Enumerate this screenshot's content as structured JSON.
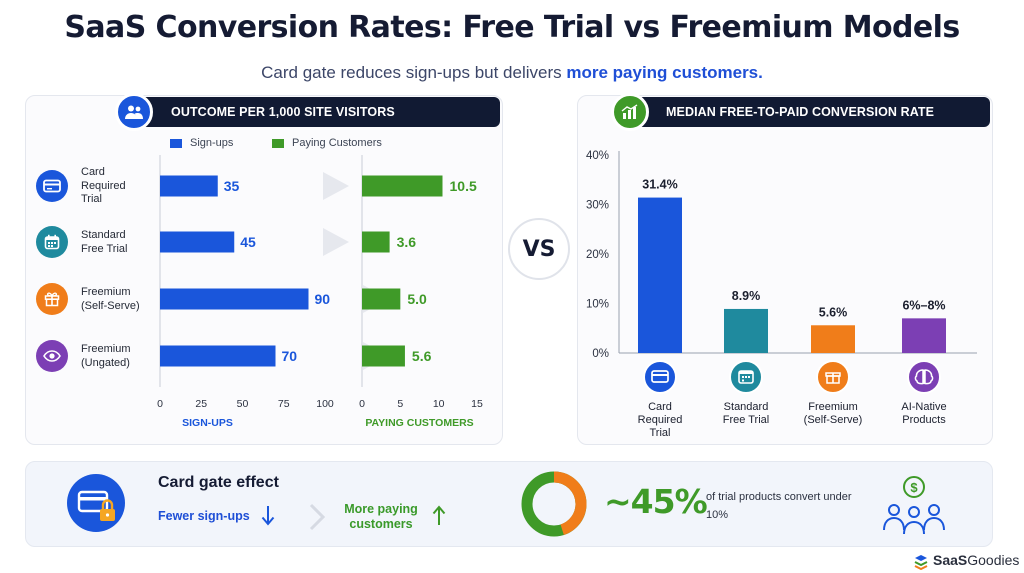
{
  "title": "SaaS Conversion Rates: Free Trial vs Freemium Models",
  "subtitle": {
    "plain": "Card gate reduces sign-ups but delivers ",
    "highlight": "more paying customers."
  },
  "colors": {
    "blue": "#1a56db",
    "green": "#3f9a28",
    "teal": "#1f8a9e",
    "orange": "#f07d1a",
    "purple": "#7c3fb4",
    "navy": "#111a33"
  },
  "left_panel": {
    "header": "OUTCOME PER 1,000 SITE VISITORS",
    "header_icon": "users-icon",
    "legend": [
      {
        "label": "Sign-ups",
        "color": "#1a56db"
      },
      {
        "label": "Paying Customers",
        "color": "#3f9a28"
      }
    ],
    "rows": [
      {
        "label_lines": [
          "Card",
          "Required",
          "Trial"
        ],
        "icon": "card-icon",
        "icon_color": "#1a56db"
      },
      {
        "label_lines": [
          "Standard",
          "Free Trial"
        ],
        "icon": "calendar-icon",
        "icon_color": "#1f8a9e"
      },
      {
        "label_lines": [
          "Freemium",
          "(Self-Serve)"
        ],
        "icon": "gift-icon",
        "icon_color": "#f07d1a"
      },
      {
        "label_lines": [
          "Freemium",
          "(Ungated)"
        ],
        "icon": "eye-icon",
        "icon_color": "#7c3fb4"
      }
    ],
    "signups_axis_title": "SIGN-UPS",
    "paying_axis_title": "PAYING CUSTOMERS"
  },
  "right_panel": {
    "header": "MEDIAN FREE-TO-PAID CONVERSION RATE",
    "header_icon": "bar-chart-icon",
    "categories": [
      {
        "label_lines": [
          "Card",
          "Required",
          "Trial"
        ],
        "icon": "card-icon"
      },
      {
        "label_lines": [
          "Standard",
          "Free Trial"
        ],
        "icon": "calendar-icon"
      },
      {
        "label_lines": [
          "Freemium",
          "(Self-Serve)"
        ],
        "icon": "gift-icon"
      },
      {
        "label_lines": [
          "AI-Native",
          "Products"
        ],
        "icon": "brain-icon"
      }
    ]
  },
  "vs_label": "VS",
  "bottom": {
    "title": "Card gate effect",
    "fewer": "Fewer sign-ups",
    "more": "More paying customers",
    "big_stat": "~45%",
    "stat_note": "of trial products convert under 10%",
    "donut_fraction": 0.45
  },
  "brand": {
    "bold": "SaaS",
    "rest": "Goodies"
  },
  "chart_data": [
    {
      "type": "bar",
      "orientation": "horizontal",
      "title": "OUTCOME PER 1,000 SITE VISITORS",
      "xlabel": "SIGN-UPS",
      "categories": [
        "Card Required Trial",
        "Standard Free Trial",
        "Freemium (Self-Serve)",
        "Freemium (Ungated)"
      ],
      "series": [
        {
          "name": "Sign-ups",
          "values": [
            35,
            45,
            90,
            70
          ],
          "labels": [
            "35",
            "45",
            "90",
            "70"
          ]
        }
      ],
      "xlim": [
        0,
        100
      ],
      "ticks": [
        "0",
        "25",
        "50",
        "75",
        "100"
      ]
    },
    {
      "type": "bar",
      "orientation": "horizontal",
      "xlabel": "PAYING CUSTOMERS",
      "categories": [
        "Card Required Trial",
        "Standard Free Trial",
        "Freemium (Self-Serve)",
        "Freemium (Ungated)"
      ],
      "series": [
        {
          "name": "Paying Customers",
          "values": [
            10.5,
            3.6,
            5.0,
            5.6
          ],
          "labels": [
            "10.5",
            "3.6",
            "5.0",
            "5.6"
          ]
        }
      ],
      "xlim": [
        0,
        15
      ],
      "ticks": [
        "0",
        "5",
        "10",
        "15"
      ]
    },
    {
      "type": "bar",
      "title": "MEDIAN FREE-TO-PAID CONVERSION RATE",
      "categories": [
        "Card Required Trial",
        "Standard Free Trial",
        "Freemium (Self-Serve)",
        "AI-Native Products"
      ],
      "values": [
        31.4,
        8.9,
        5.6,
        7
      ],
      "labels": [
        "31.4%",
        "8.9%",
        "5.6%",
        "6%–8%"
      ],
      "colors": [
        "#1a56db",
        "#1f8a9e",
        "#f07d1a",
        "#7c3fb4"
      ],
      "ylim": [
        0,
        40
      ],
      "ticks": [
        "0%",
        "10%",
        "20%",
        "30%",
        "40%"
      ]
    }
  ]
}
